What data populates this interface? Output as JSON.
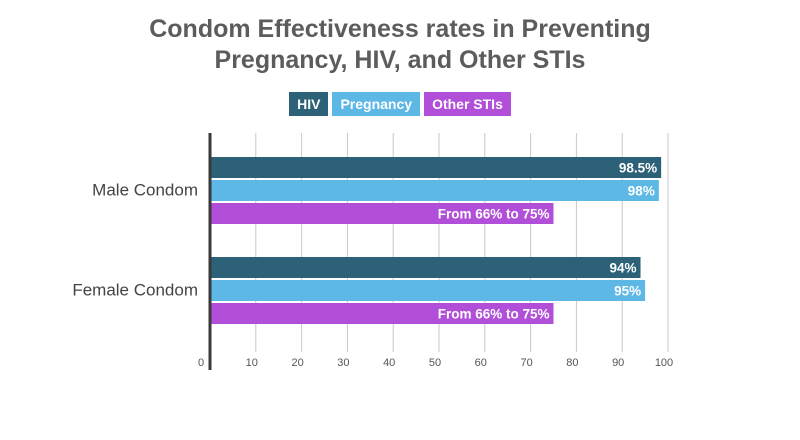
{
  "chart_data": {
    "type": "bar",
    "orientation": "horizontal",
    "title_lines": [
      "Condom Effectiveness rates in Preventing",
      "Pregnancy, HIV, and Other STIs"
    ],
    "categories": [
      "Male Condom",
      "Female Condom"
    ],
    "series": [
      {
        "name": "HIV",
        "color": "#2c6178",
        "values": [
          98.5,
          94
        ],
        "labels": [
          "98.5%",
          "94%"
        ]
      },
      {
        "name": "Pregnancy",
        "color": "#5db8e6",
        "values": [
          98,
          95
        ],
        "labels": [
          "98%",
          "95%"
        ]
      },
      {
        "name": "Other STIs",
        "color": "#b14fd8",
        "values": [
          75,
          75
        ],
        "ranges": [
          [
            66,
            75
          ],
          [
            66,
            75
          ]
        ],
        "labels": [
          "From 66% to 75%",
          "From 66% to 75%"
        ]
      }
    ],
    "xlim": [
      0,
      100
    ],
    "xticks": [
      0,
      10,
      20,
      30,
      40,
      50,
      60,
      70,
      80,
      90,
      100
    ],
    "grid": true,
    "legend_position": "top"
  }
}
